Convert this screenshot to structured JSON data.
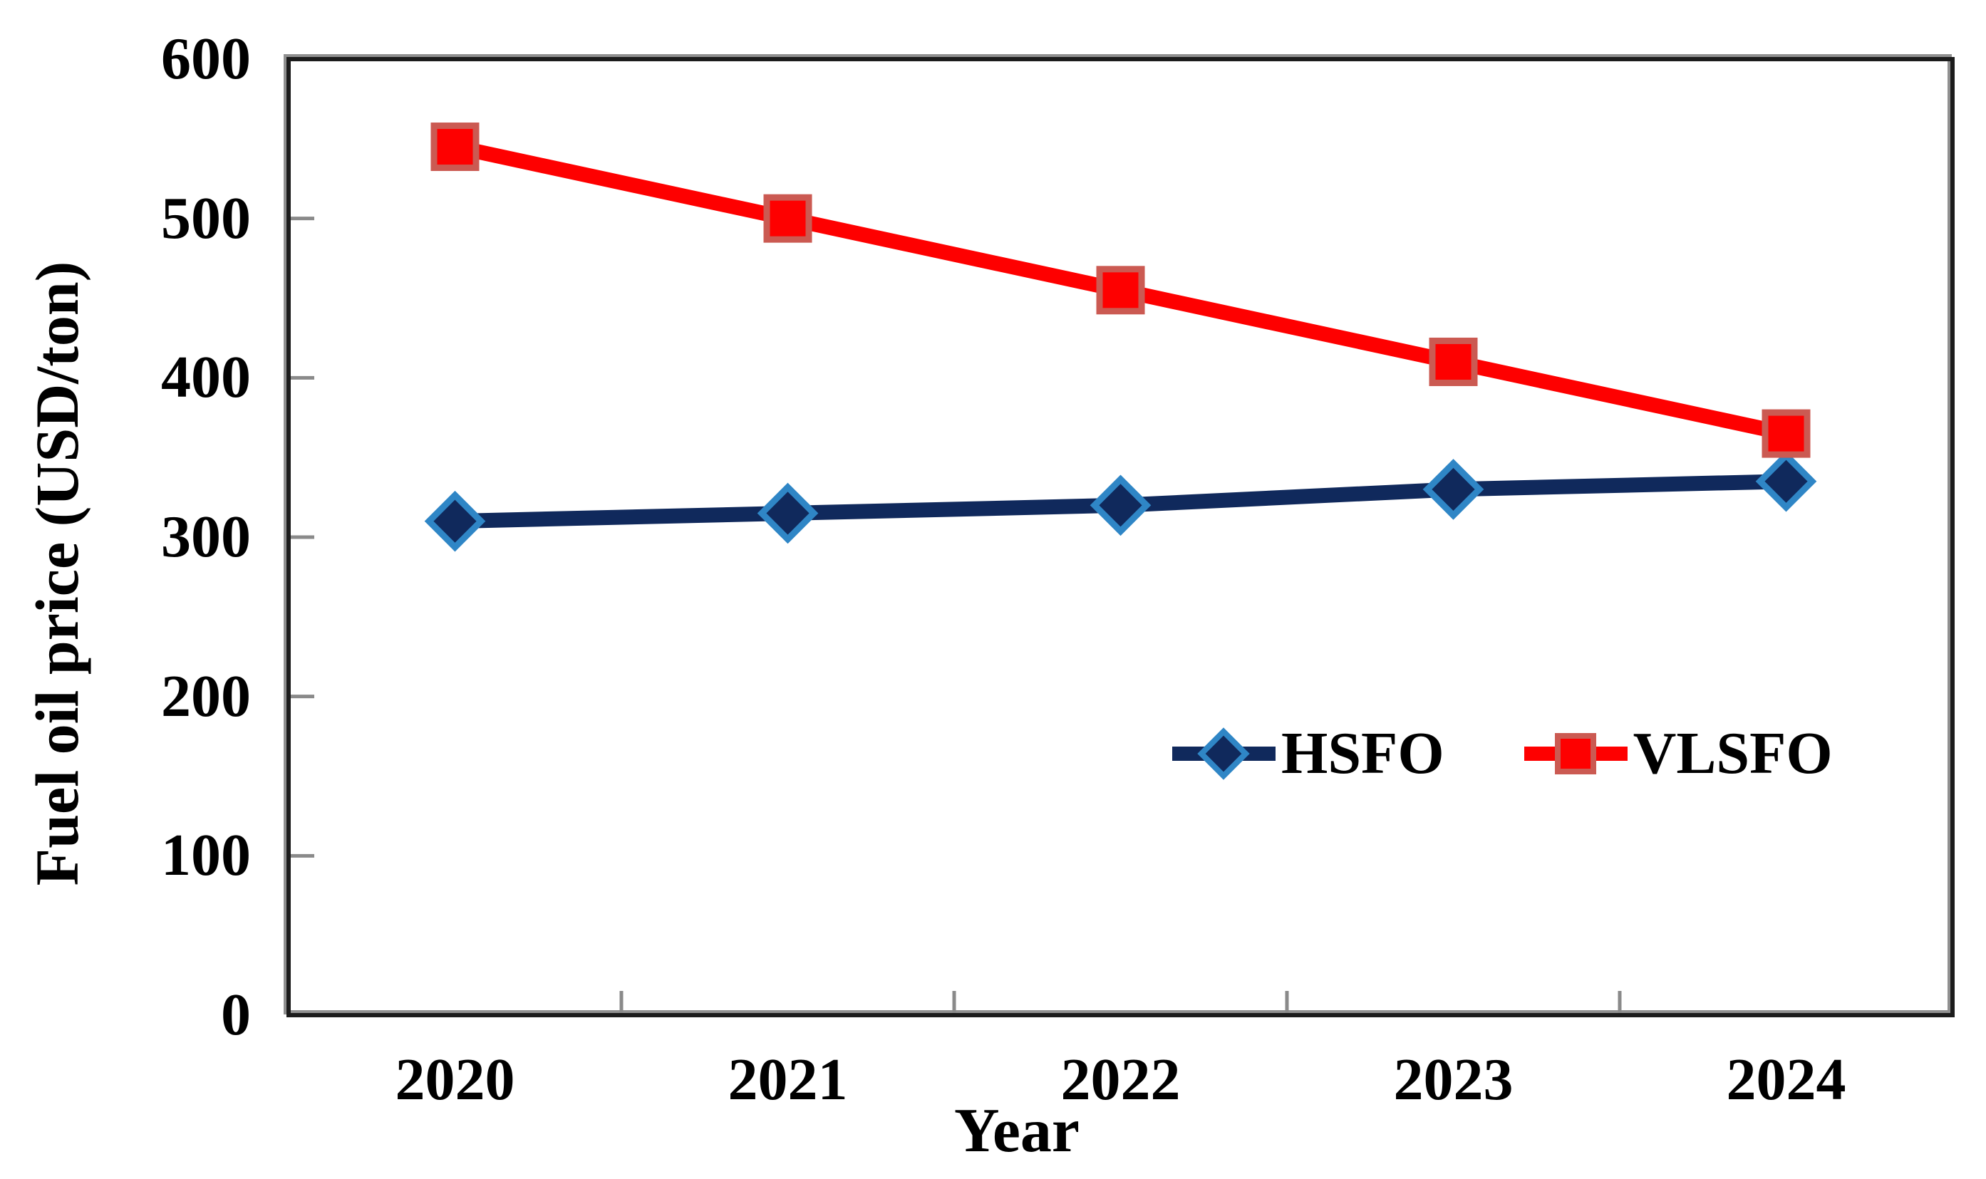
{
  "chart_data": {
    "type": "line",
    "title": "",
    "xlabel": "Year",
    "ylabel": "Fuel oil price (USD/ton)",
    "categories": [
      "2020",
      "2021",
      "2022",
      "2023",
      "2024"
    ],
    "series": [
      {
        "name": "HSFO",
        "values": [
          310,
          315,
          320,
          330,
          335
        ],
        "color": "#10295c",
        "marker": "diamond",
        "marker_fill": "#10295c",
        "marker_stroke": "#2f86c6"
      },
      {
        "name": "VLSFO",
        "values": [
          545,
          500,
          455,
          410,
          365
        ],
        "color": "#fe0000",
        "marker": "square",
        "marker_fill": "#fe0000",
        "marker_stroke": "#cb5a52"
      }
    ],
    "ylim": [
      0,
      600
    ],
    "yticks": [
      0,
      100,
      200,
      300,
      400,
      500,
      600
    ],
    "grid": false,
    "legend_position": "inside-right-middle",
    "frame_color": "#1c1c1c",
    "frame_shadow_color": "#909090",
    "tick_color": "#8a8a8a",
    "text_color": "#000000"
  }
}
